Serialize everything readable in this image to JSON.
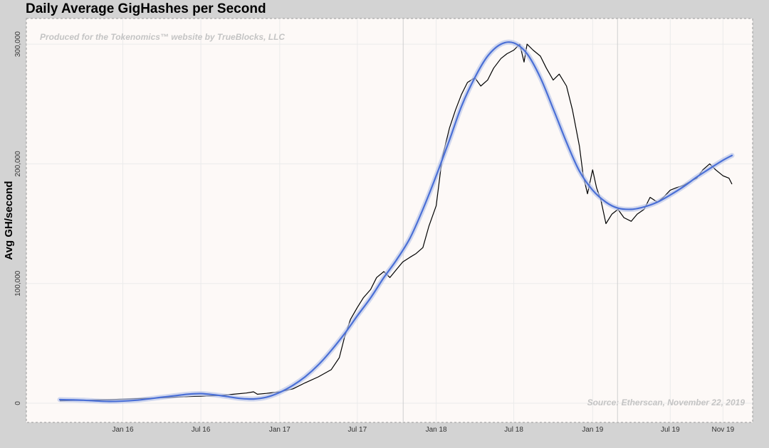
{
  "chart_data": {
    "type": "line",
    "title": "Daily Average GigHashes per Second",
    "xlabel": "",
    "ylabel": "Avg GH/second",
    "ylim": [
      0,
      306000
    ],
    "yticks": [
      {
        "value": 0,
        "label": "0"
      },
      {
        "value": 100000,
        "label": "100,000"
      },
      {
        "value": 200000,
        "label": "200,000"
      },
      {
        "value": 300000,
        "label": "300,000"
      }
    ],
    "xlim": [
      "2015-08-07",
      "2019-11-22"
    ],
    "xticks": [
      {
        "date": "2016-01-01",
        "label": "Jan 16"
      },
      {
        "date": "2016-07-01",
        "label": "Jul 16"
      },
      {
        "date": "2017-01-01",
        "label": "Jan 17"
      },
      {
        "date": "2017-07-01",
        "label": "Jul 17"
      },
      {
        "date": "2018-01-01",
        "label": "Jan 18"
      },
      {
        "date": "2018-07-01",
        "label": "Jul 18"
      },
      {
        "date": "2019-01-01",
        "label": "Jan 19"
      },
      {
        "date": "2019-07-01",
        "label": "Jul 19"
      },
      {
        "date": "2019-11-01",
        "label": "Nov 19"
      }
    ],
    "vlines": [
      "2017-10-16",
      "2019-02-28"
    ],
    "grid": true,
    "annotations": {
      "credit": "Produced for the Tokenomics™ website by TrueBlocks, LLC",
      "source": "Source: Etherscan, November 22, 2019"
    },
    "series": [
      {
        "style": "line",
        "color": "#000000",
        "points": [
          [
            "2015-08-07",
            2000
          ],
          [
            "2015-10-01",
            2500
          ],
          [
            "2015-12-01",
            3000
          ],
          [
            "2016-02-01",
            3800
          ],
          [
            "2016-04-01",
            4500
          ],
          [
            "2016-06-01",
            5500
          ],
          [
            "2016-07-15",
            6000
          ],
          [
            "2016-08-15",
            6500
          ],
          [
            "2016-09-15",
            7500
          ],
          [
            "2016-10-15",
            8500
          ],
          [
            "2016-11-01",
            9500
          ],
          [
            "2016-11-10",
            7500
          ],
          [
            "2016-12-01",
            8200
          ],
          [
            "2017-01-01",
            9500
          ],
          [
            "2017-02-01",
            12000
          ],
          [
            "2017-03-01",
            17000
          ],
          [
            "2017-04-01",
            22000
          ],
          [
            "2017-05-01",
            28000
          ],
          [
            "2017-05-20",
            38000
          ],
          [
            "2017-06-01",
            55000
          ],
          [
            "2017-06-15",
            70000
          ],
          [
            "2017-07-01",
            80000
          ],
          [
            "2017-07-15",
            88000
          ],
          [
            "2017-08-01",
            95000
          ],
          [
            "2017-08-15",
            105000
          ],
          [
            "2017-09-01",
            110000
          ],
          [
            "2017-09-15",
            105000
          ],
          [
            "2017-10-01",
            112000
          ],
          [
            "2017-10-15",
            118000
          ],
          [
            "2017-11-01",
            122000
          ],
          [
            "2017-11-15",
            125000
          ],
          [
            "2017-12-01",
            130000
          ],
          [
            "2017-12-15",
            148000
          ],
          [
            "2018-01-01",
            165000
          ],
          [
            "2018-01-15",
            205000
          ],
          [
            "2018-02-01",
            230000
          ],
          [
            "2018-02-15",
            245000
          ],
          [
            "2018-03-01",
            258000
          ],
          [
            "2018-03-15",
            268000
          ],
          [
            "2018-04-01",
            272000
          ],
          [
            "2018-04-15",
            265000
          ],
          [
            "2018-05-01",
            270000
          ],
          [
            "2018-05-15",
            280000
          ],
          [
            "2018-06-01",
            288000
          ],
          [
            "2018-06-15",
            292000
          ],
          [
            "2018-07-01",
            295000
          ],
          [
            "2018-07-15",
            300000
          ],
          [
            "2018-07-25",
            285000
          ],
          [
            "2018-08-01",
            300000
          ],
          [
            "2018-08-15",
            295000
          ],
          [
            "2018-09-01",
            290000
          ],
          [
            "2018-09-15",
            280000
          ],
          [
            "2018-10-01",
            270000
          ],
          [
            "2018-10-15",
            275000
          ],
          [
            "2018-11-01",
            265000
          ],
          [
            "2018-11-15",
            245000
          ],
          [
            "2018-12-01",
            215000
          ],
          [
            "2018-12-10",
            190000
          ],
          [
            "2018-12-20",
            175000
          ],
          [
            "2019-01-01",
            195000
          ],
          [
            "2019-01-10",
            180000
          ],
          [
            "2019-01-20",
            170000
          ],
          [
            "2019-02-01",
            150000
          ],
          [
            "2019-02-15",
            158000
          ],
          [
            "2019-03-01",
            162000
          ],
          [
            "2019-03-15",
            155000
          ],
          [
            "2019-04-01",
            152000
          ],
          [
            "2019-04-15",
            158000
          ],
          [
            "2019-05-01",
            162000
          ],
          [
            "2019-05-15",
            172000
          ],
          [
            "2019-06-01",
            168000
          ],
          [
            "2019-06-15",
            172000
          ],
          [
            "2019-07-01",
            178000
          ],
          [
            "2019-07-15",
            180000
          ],
          [
            "2019-08-01",
            182000
          ],
          [
            "2019-08-15",
            185000
          ],
          [
            "2019-09-01",
            188000
          ],
          [
            "2019-09-15",
            195000
          ],
          [
            "2019-10-01",
            200000
          ],
          [
            "2019-10-15",
            195000
          ],
          [
            "2019-11-01",
            190000
          ],
          [
            "2019-11-15",
            188000
          ],
          [
            "2019-11-22",
            183000
          ]
        ]
      },
      {
        "style": "smooth",
        "color": "#4a6fd6",
        "points": [
          [
            "2015-08-07",
            3000
          ],
          [
            "2015-10-01",
            2500
          ],
          [
            "2015-12-01",
            1500
          ],
          [
            "2016-02-01",
            2500
          ],
          [
            "2016-04-01",
            5000
          ],
          [
            "2016-06-01",
            7500
          ],
          [
            "2016-07-01",
            8000
          ],
          [
            "2016-08-01",
            7000
          ],
          [
            "2016-09-01",
            5500
          ],
          [
            "2016-10-01",
            4000
          ],
          [
            "2016-11-01",
            3500
          ],
          [
            "2016-12-01",
            5000
          ],
          [
            "2017-01-01",
            9000
          ],
          [
            "2017-02-01",
            15000
          ],
          [
            "2017-03-01",
            22000
          ],
          [
            "2017-04-01",
            32000
          ],
          [
            "2017-05-01",
            44000
          ],
          [
            "2017-06-01",
            58000
          ],
          [
            "2017-07-01",
            73000
          ],
          [
            "2017-08-01",
            88000
          ],
          [
            "2017-09-01",
            105000
          ],
          [
            "2017-10-01",
            120000
          ],
          [
            "2017-11-01",
            138000
          ],
          [
            "2017-12-01",
            162000
          ],
          [
            "2018-01-01",
            190000
          ],
          [
            "2018-02-01",
            220000
          ],
          [
            "2018-03-01",
            248000
          ],
          [
            "2018-04-01",
            272000
          ],
          [
            "2018-05-01",
            290000
          ],
          [
            "2018-06-01",
            300000
          ],
          [
            "2018-07-01",
            301000
          ],
          [
            "2018-08-01",
            292000
          ],
          [
            "2018-09-01",
            272000
          ],
          [
            "2018-10-01",
            246000
          ],
          [
            "2018-11-01",
            218000
          ],
          [
            "2018-12-01",
            194000
          ],
          [
            "2019-01-01",
            178000
          ],
          [
            "2019-02-01",
            168000
          ],
          [
            "2019-03-01",
            163000
          ],
          [
            "2019-04-01",
            162000
          ],
          [
            "2019-05-01",
            164000
          ],
          [
            "2019-06-01",
            168000
          ],
          [
            "2019-07-01",
            174000
          ],
          [
            "2019-08-01",
            181000
          ],
          [
            "2019-09-01",
            189000
          ],
          [
            "2019-10-01",
            196000
          ],
          [
            "2019-11-01",
            203000
          ],
          [
            "2019-11-22",
            207000
          ]
        ]
      }
    ]
  }
}
